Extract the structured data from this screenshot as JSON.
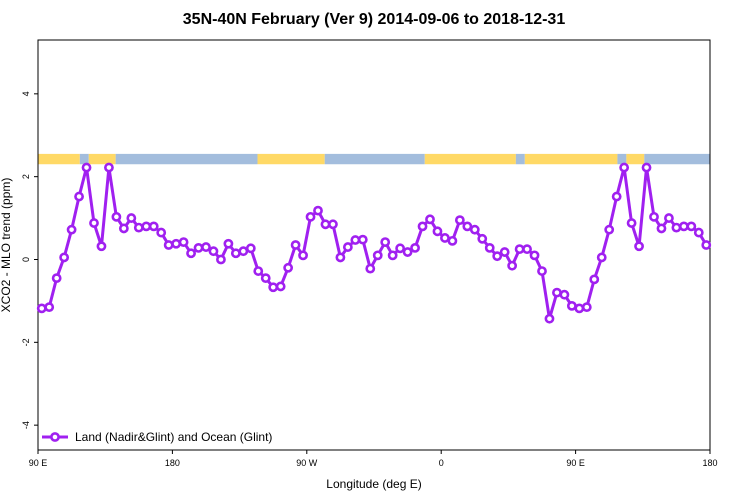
{
  "chart_data": {
    "type": "line",
    "title": "35N-40N February (Ver 9)   2014-09-06 to 2018-12-31",
    "xlabel": "Longitude (deg E)",
    "ylabel": "XCO2 - MLO trend (ppm)",
    "xlim": [
      90,
      540
    ],
    "ylim": [
      -4.6,
      5.3
    ],
    "x_ticks": [
      {
        "value": 90,
        "label": "90 E"
      },
      {
        "value": 180,
        "label": "180"
      },
      {
        "value": 270,
        "label": "90 W"
      },
      {
        "value": 360,
        "label": "0"
      },
      {
        "value": 450,
        "label": "90 E"
      },
      {
        "value": 540,
        "label": "180"
      }
    ],
    "y_ticks": [
      {
        "value": -4,
        "label": "-4"
      },
      {
        "value": -2,
        "label": "-2"
      },
      {
        "value": 0,
        "label": "0"
      },
      {
        "value": 2,
        "label": "2"
      },
      {
        "value": 4,
        "label": "4"
      }
    ],
    "series": [
      {
        "name": "Land (Nadir&Glint) and Ocean (Glint)",
        "color": "#a020f0",
        "x": [
          92.5,
          97.5,
          102.5,
          107.5,
          112.5,
          117.5,
          122.5,
          127.5,
          132.5,
          137.5,
          142.5,
          147.5,
          152.5,
          157.5,
          162.5,
          167.5,
          172.5,
          177.5,
          182.5,
          187.5,
          192.5,
          197.5,
          202.5,
          207.5,
          212.5,
          217.5,
          222.5,
          227.5,
          232.5,
          237.5,
          242.5,
          247.5,
          252.5,
          257.5,
          262.5,
          267.5,
          272.5,
          277.5,
          282.5,
          287.5,
          292.5,
          297.5,
          302.5,
          307.5,
          312.5,
          317.5,
          322.5,
          327.5,
          332.5,
          337.5,
          342.5,
          347.5,
          352.5,
          357.5,
          362.5,
          367.5,
          372.5,
          377.5,
          382.5,
          387.5,
          392.5,
          397.5,
          402.5,
          407.5,
          412.5,
          417.5,
          422.5,
          427.5,
          432.5,
          437.5,
          442.5,
          447.5,
          452.5,
          457.5,
          462.5,
          467.5,
          472.5,
          477.5,
          482.5,
          487.5,
          492.5,
          497.5,
          502.5,
          507.5,
          512.5,
          517.5,
          522.5,
          527.5,
          532.5,
          537.5
        ],
        "y": [
          -1.18,
          -1.15,
          -0.45,
          0.05,
          0.72,
          1.52,
          2.22,
          0.88,
          0.32,
          2.22,
          1.03,
          0.75,
          1.0,
          0.77,
          0.8,
          0.8,
          0.65,
          0.35,
          0.38,
          0.42,
          0.15,
          0.28,
          0.3,
          0.2,
          0.0,
          0.38,
          0.15,
          0.2,
          0.27,
          -0.28,
          -0.45,
          -0.67,
          -0.65,
          -0.2,
          0.35,
          0.1,
          1.03,
          1.18,
          0.85,
          0.85,
          0.05,
          0.3,
          0.47,
          0.48,
          -0.22,
          0.1,
          0.42,
          0.1,
          0.27,
          0.18,
          0.28,
          0.8,
          0.97,
          0.68,
          0.52,
          0.45,
          0.95,
          0.8,
          0.72,
          0.5,
          0.28,
          0.08,
          0.18,
          -0.15,
          0.25,
          0.25,
          0.1,
          -0.28,
          -1.43,
          -0.8,
          -0.85,
          -1.12,
          -1.18,
          -1.15,
          -0.48,
          0.05,
          0.72,
          1.52,
          2.22,
          0.88,
          0.32,
          2.22,
          1.03,
          0.75,
          1.0,
          0.77,
          0.8,
          0.8,
          0.65,
          0.35
        ]
      }
    ],
    "surface_band": {
      "y_range": [
        2.3,
        2.55
      ],
      "land_color": "#ffd966",
      "ocean_color": "#a3bddd",
      "segments": [
        {
          "type": "land",
          "from": 90,
          "to": 118
        },
        {
          "type": "ocean",
          "from": 118,
          "to": 124
        },
        {
          "type": "land",
          "from": 124,
          "to": 142
        },
        {
          "type": "ocean",
          "from": 142,
          "to": 237
        },
        {
          "type": "land",
          "from": 237,
          "to": 282
        },
        {
          "type": "ocean",
          "from": 282,
          "to": 349
        },
        {
          "type": "land",
          "from": 349,
          "to": 410
        },
        {
          "type": "ocean",
          "from": 410,
          "to": 416
        },
        {
          "type": "land",
          "from": 416,
          "to": 478
        },
        {
          "type": "ocean",
          "from": 478,
          "to": 484
        },
        {
          "type": "land",
          "from": 484,
          "to": 496
        },
        {
          "type": "ocean",
          "from": 496,
          "to": 540
        }
      ]
    },
    "legend_position": "bottom-left",
    "grid": false
  }
}
